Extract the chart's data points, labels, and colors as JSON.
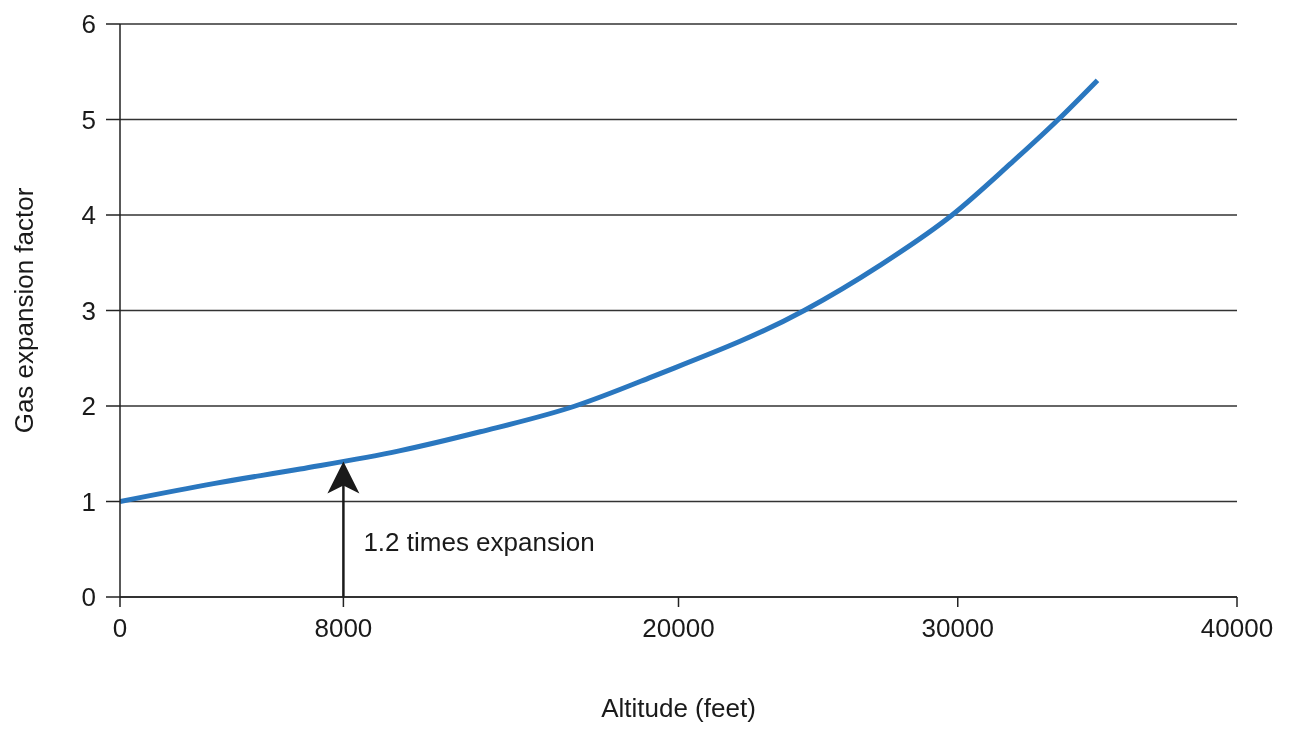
{
  "chart_data": {
    "type": "line",
    "xlabel": "Altitude (feet)",
    "ylabel": "Gas expansion factor",
    "x": [
      0,
      3400,
      6450,
      10000,
      12900,
      16300,
      19000,
      24500,
      27200,
      29800,
      31900,
      33600,
      35000
    ],
    "series": [
      {
        "color": "#2a77bf",
        "values": [
          1,
          1.19,
          1.34,
          1.53,
          1.73,
          2,
          2.3,
          3,
          3.47,
          4,
          4.54,
          5,
          5.41
        ]
      }
    ],
    "xlim": [
      0,
      40000
    ],
    "xticks": [
      0,
      8000,
      20000,
      30000,
      40000
    ],
    "ylim": [
      0,
      6
    ],
    "yticks": [
      0,
      1,
      2,
      3,
      4,
      5,
      6
    ],
    "grid": "y",
    "marker": "none",
    "line_style": "solid",
    "annotations": [
      {
        "text": "1.2 times expansion",
        "x": 8000,
        "y": 1.42
      }
    ]
  }
}
